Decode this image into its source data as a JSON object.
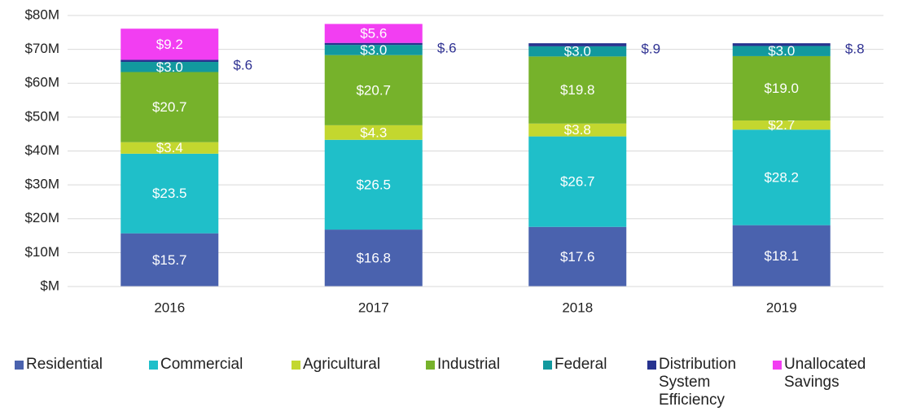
{
  "chart_data": {
    "type": "stacked_bar",
    "categories": [
      "2016",
      "2017",
      "2018",
      "2019"
    ],
    "series": [
      {
        "name": "Residential",
        "color": "#4a62ae",
        "values": [
          15.7,
          16.8,
          17.6,
          18.1
        ],
        "value_labels": [
          "$15.7",
          "$16.8",
          "$17.6",
          "$18.1"
        ]
      },
      {
        "name": "Commercial",
        "color": "#1fbfc9",
        "values": [
          23.5,
          26.5,
          26.7,
          28.2
        ],
        "value_labels": [
          "$23.5",
          "$26.5",
          "$26.7",
          "$28.2"
        ]
      },
      {
        "name": "Agricultural",
        "color": "#c3d72f",
        "values": [
          3.4,
          4.3,
          3.8,
          2.7
        ],
        "value_labels": [
          "$3.4",
          "$4.3",
          "$3.8",
          "$2.7"
        ]
      },
      {
        "name": "Industrial",
        "color": "#76b22b",
        "values": [
          20.7,
          20.7,
          19.8,
          19.0
        ],
        "value_labels": [
          "$20.7",
          "$20.7",
          "$19.8",
          "$19.0"
        ]
      },
      {
        "name": "Federal",
        "color": "#12999e",
        "values": [
          3.0,
          3.0,
          3.0,
          3.0
        ],
        "value_labels": [
          "$3.0",
          "$3.0",
          "$3.0",
          "$3.0"
        ]
      },
      {
        "name": "Distribution System Efficiency",
        "color": "#27338f",
        "values": [
          0.6,
          0.6,
          0.9,
          0.8
        ],
        "value_labels": [
          "$.6",
          "$.6",
          "$.9",
          "$.8"
        ]
      },
      {
        "name": "Unallocated Savings",
        "color": "#f23ef2",
        "values": [
          9.2,
          5.6,
          null,
          null
        ],
        "value_labels": [
          "$9.2",
          "$5.6",
          null,
          null
        ]
      }
    ],
    "ylim": [
      0,
      80
    ],
    "yticks": [
      {
        "value": 0,
        "label": "$M"
      },
      {
        "value": 10,
        "label": "$10M"
      },
      {
        "value": 20,
        "label": "$20M"
      },
      {
        "value": 30,
        "label": "$30M"
      },
      {
        "value": 40,
        "label": "$40M"
      },
      {
        "value": 50,
        "label": "$50M"
      },
      {
        "value": 60,
        "label": "$60M"
      },
      {
        "value": 70,
        "label": "$70M"
      },
      {
        "value": 80,
        "label": "$80M"
      }
    ],
    "grid": true
  }
}
